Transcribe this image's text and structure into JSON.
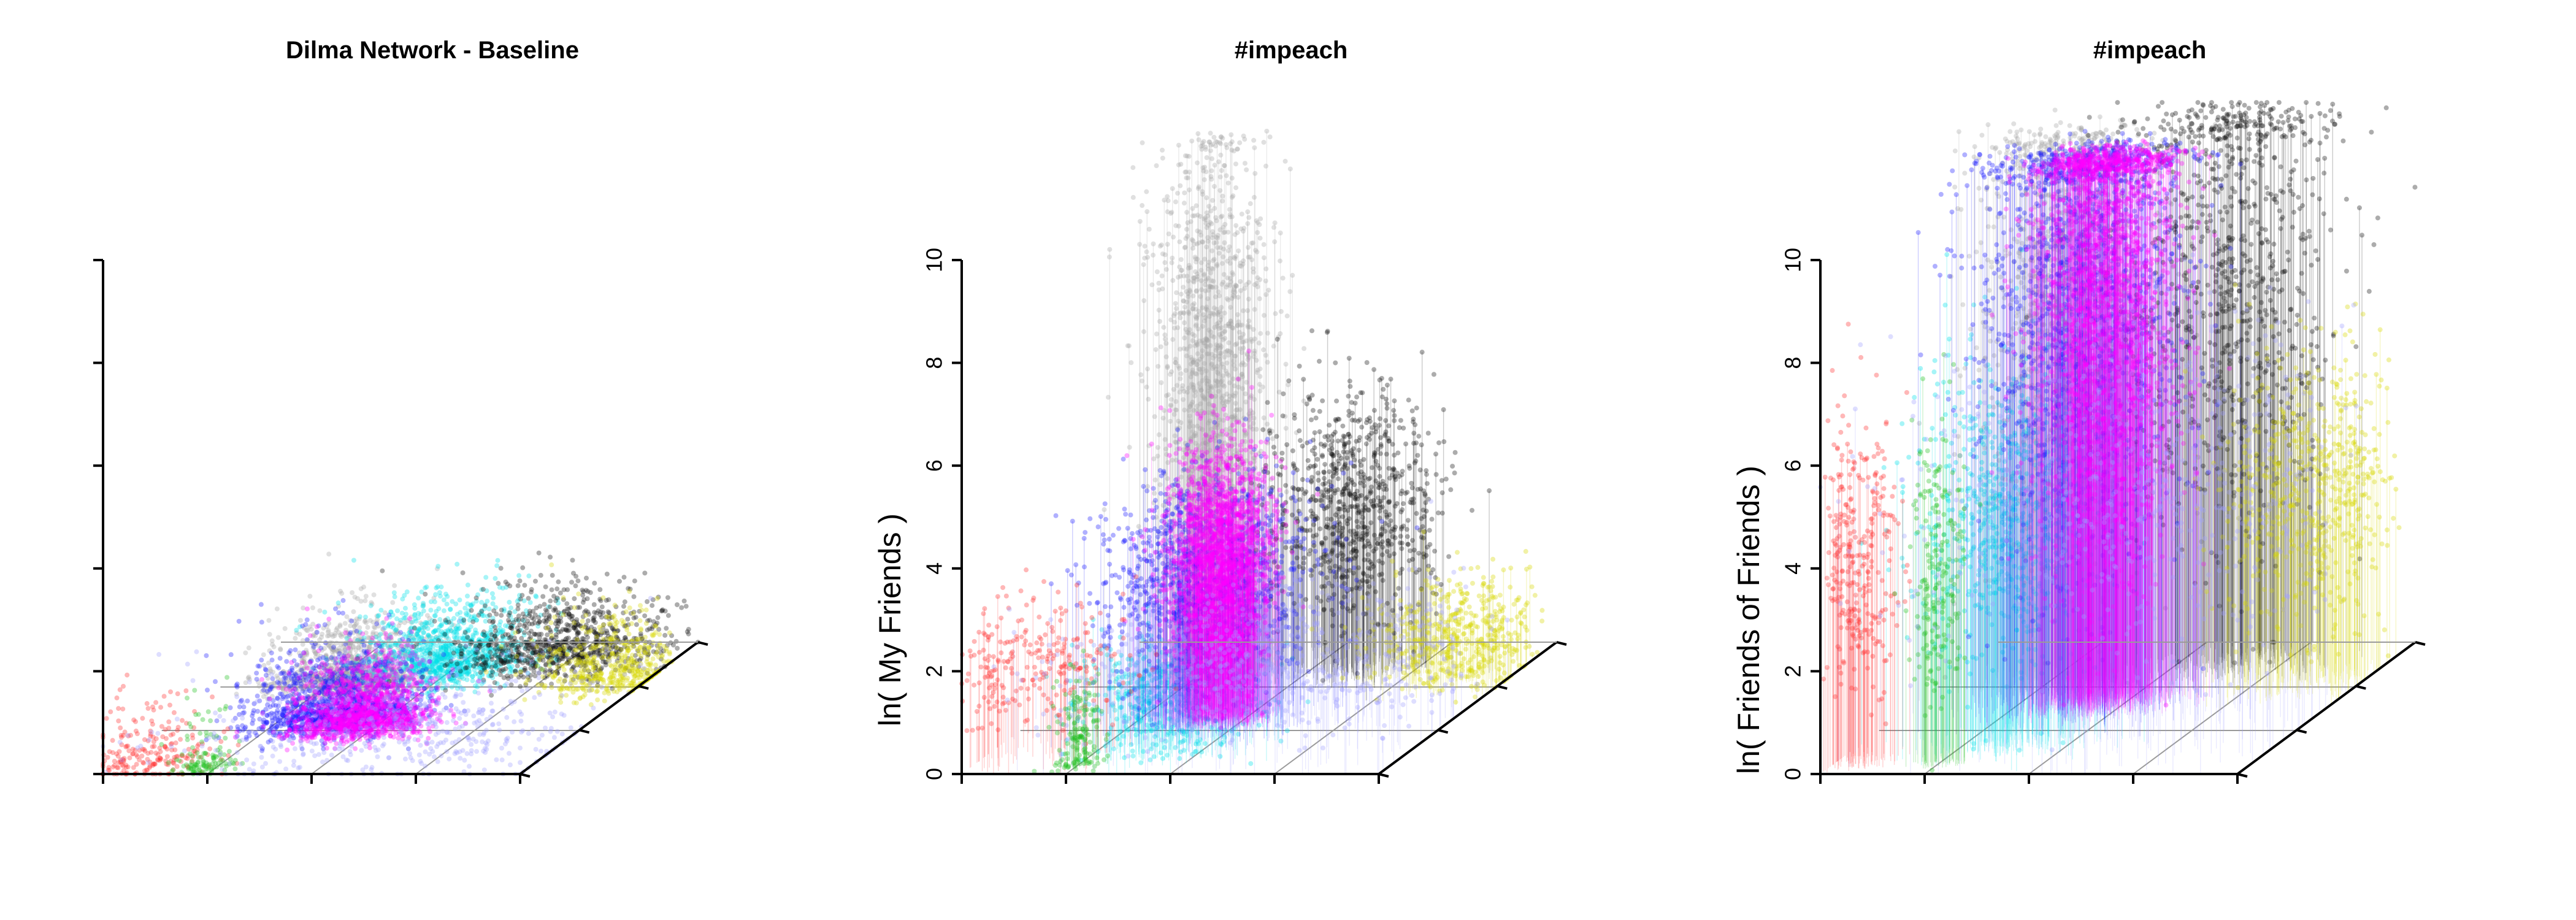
{
  "chart_data": [
    {
      "type": "scatter3d",
      "title": "Dilma Network - Baseline",
      "zlabel": "",
      "zlim": [
        0,
        10
      ],
      "z_ticks": [],
      "grid": true,
      "clusters": [
        {
          "color": "#a6a6a6",
          "x": 0.3,
          "y": 0.7,
          "z": 0.12,
          "spread": 0.09,
          "n": 1100
        },
        {
          "color": "#00e0e8",
          "x": 0.48,
          "y": 0.82,
          "z": 0.12,
          "spread": 0.1,
          "n": 1100
        },
        {
          "color": "#101010",
          "x": 0.72,
          "y": 0.9,
          "z": 0.12,
          "spread": 0.12,
          "n": 900
        },
        {
          "color": "#1e1eff",
          "x": 0.38,
          "y": 0.42,
          "z": 0.12,
          "spread": 0.1,
          "n": 1300
        },
        {
          "color": "#ff00ff",
          "x": 0.46,
          "y": 0.38,
          "z": 0.12,
          "spread": 0.08,
          "n": 1300
        },
        {
          "color": "#d8d800",
          "x": 0.92,
          "y": 0.72,
          "z": 0.12,
          "spread": 0.09,
          "n": 500
        },
        {
          "color": "#ff3030",
          "x": 0.08,
          "y": 0.08,
          "z": 0.12,
          "spread": 0.08,
          "n": 220
        },
        {
          "color": "#20c020",
          "x": 0.22,
          "y": 0.05,
          "z": 0.12,
          "spread": 0.04,
          "n": 120
        },
        {
          "color": "#a0a0ff",
          "x": 0.62,
          "y": 0.25,
          "z": 0.12,
          "spread": 0.25,
          "n": 500
        }
      ]
    },
    {
      "type": "scatter3d",
      "title": "#impeach",
      "zlabel": "ln( My Friends )",
      "zlim": [
        0,
        10
      ],
      "z_ticks": [
        "0",
        "2",
        "4",
        "6",
        "8",
        "10"
      ],
      "grid": true,
      "clusters": [
        {
          "color": "#a6a6a6",
          "x": 0.3,
          "y": 0.7,
          "z": 6.5,
          "spread": 0.07,
          "n": 1100
        },
        {
          "color": "#00e0e8",
          "x": 0.42,
          "y": 0.2,
          "z": 1.0,
          "spread": 0.1,
          "n": 600
        },
        {
          "color": "#101010",
          "x": 0.6,
          "y": 0.8,
          "z": 3.2,
          "spread": 0.1,
          "n": 800
        },
        {
          "color": "#1e1eff",
          "x": 0.42,
          "y": 0.4,
          "z": 2.8,
          "spread": 0.12,
          "n": 1100
        },
        {
          "color": "#ff00ff",
          "x": 0.44,
          "y": 0.42,
          "z": 3.2,
          "spread": 0.06,
          "n": 1600
        },
        {
          "color": "#d8d800",
          "x": 0.88,
          "y": 0.72,
          "z": 0.8,
          "spread": 0.1,
          "n": 500
        },
        {
          "color": "#ff3030",
          "x": 0.1,
          "y": 0.15,
          "z": 1.8,
          "spread": 0.12,
          "n": 250
        },
        {
          "color": "#20c020",
          "x": 0.25,
          "y": 0.08,
          "z": 0.5,
          "spread": 0.03,
          "n": 150
        },
        {
          "color": "#a0a0ff",
          "x": 0.6,
          "y": 0.3,
          "z": 1.5,
          "spread": 0.25,
          "n": 600
        }
      ]
    },
    {
      "type": "scatter3d",
      "title": "#impeach",
      "zlabel": "ln( Friends of Friends )",
      "zlim": [
        0,
        10
      ],
      "z_ticks": [
        "0",
        "2",
        "4",
        "6",
        "8",
        "10"
      ],
      "grid": true,
      "clusters": [
        {
          "color": "#a6a6a6",
          "x": 0.3,
          "y": 0.7,
          "z": 7.5,
          "spread": 0.1,
          "n": 1200
        },
        {
          "color": "#00e0e8",
          "x": 0.35,
          "y": 0.25,
          "z": 4.5,
          "spread": 0.1,
          "n": 800
        },
        {
          "color": "#101010",
          "x": 0.62,
          "y": 0.85,
          "z": 8.0,
          "spread": 0.12,
          "n": 900
        },
        {
          "color": "#1e1eff",
          "x": 0.4,
          "y": 0.55,
          "z": 8.5,
          "spread": 0.12,
          "n": 1400
        },
        {
          "color": "#ff00ff",
          "x": 0.45,
          "y": 0.55,
          "z": 8.8,
          "spread": 0.08,
          "n": 1700
        },
        {
          "color": "#d8d800",
          "x": 0.88,
          "y": 0.72,
          "z": 3.8,
          "spread": 0.1,
          "n": 600
        },
        {
          "color": "#ff3030",
          "x": 0.05,
          "y": 0.1,
          "z": 4.0,
          "spread": 0.05,
          "n": 300
        },
        {
          "color": "#20c020",
          "x": 0.25,
          "y": 0.08,
          "z": 4.0,
          "spread": 0.03,
          "n": 200
        },
        {
          "color": "#a0a0ff",
          "x": 0.6,
          "y": 0.3,
          "z": 5.0,
          "spread": 0.25,
          "n": 600
        }
      ]
    }
  ]
}
